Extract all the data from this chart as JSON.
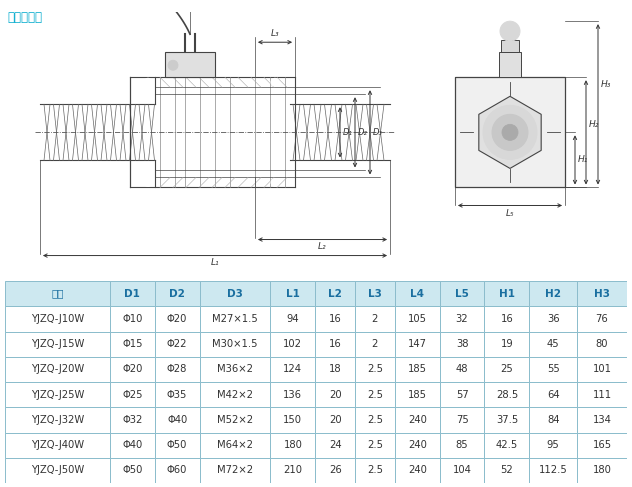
{
  "title": "外螺纹连接",
  "title_color": "#00aacc",
  "title_underline": true,
  "header": [
    "型号",
    "D1",
    "D2",
    "D3",
    "L1",
    "L2",
    "L3",
    "L4",
    "L5",
    "H1",
    "H2",
    "H3"
  ],
  "rows": [
    [
      "YJZQ-J10W",
      "Φ10",
      "Φ20",
      "M27×1.5",
      "94",
      "16",
      "2",
      "105",
      "32",
      "16",
      "36",
      "76"
    ],
    [
      "YJZQ-J15W",
      "Φ15",
      "Φ22",
      "M30×1.5",
      "102",
      "16",
      "2",
      "147",
      "38",
      "19",
      "45",
      "80"
    ],
    [
      "YJZQ-J20W",
      "Φ20",
      "Φ28",
      "M36×2",
      "124",
      "18",
      "2.5",
      "185",
      "48",
      "25",
      "55",
      "101"
    ],
    [
      "YJZQ-J25W",
      "Φ25",
      "Φ35",
      "M42×2",
      "136",
      "20",
      "2.5",
      "185",
      "57",
      "28.5",
      "64",
      "111"
    ],
    [
      "YJZQ-J32W",
      "Φ32",
      "Φ40",
      "M52×2",
      "150",
      "20",
      "2.5",
      "240",
      "75",
      "37.5",
      "84",
      "134"
    ],
    [
      "YJZQ-J40W",
      "Φ40",
      "Φ50",
      "M64×2",
      "180",
      "24",
      "2.5",
      "240",
      "85",
      "42.5",
      "95",
      "165"
    ],
    [
      "YJZQ-J50W",
      "Φ50",
      "Φ60",
      "M72×2",
      "210",
      "26",
      "2.5",
      "240",
      "104",
      "52",
      "112.5",
      "180"
    ]
  ],
  "header_bg": "#cde8f0",
  "border_color": "#8bbccc",
  "header_text_color": "#1a6fa0",
  "row_text_color": "#333333",
  "fig_bg": "#ffffff",
  "line_color": "#444444",
  "dim_color": "#333333"
}
